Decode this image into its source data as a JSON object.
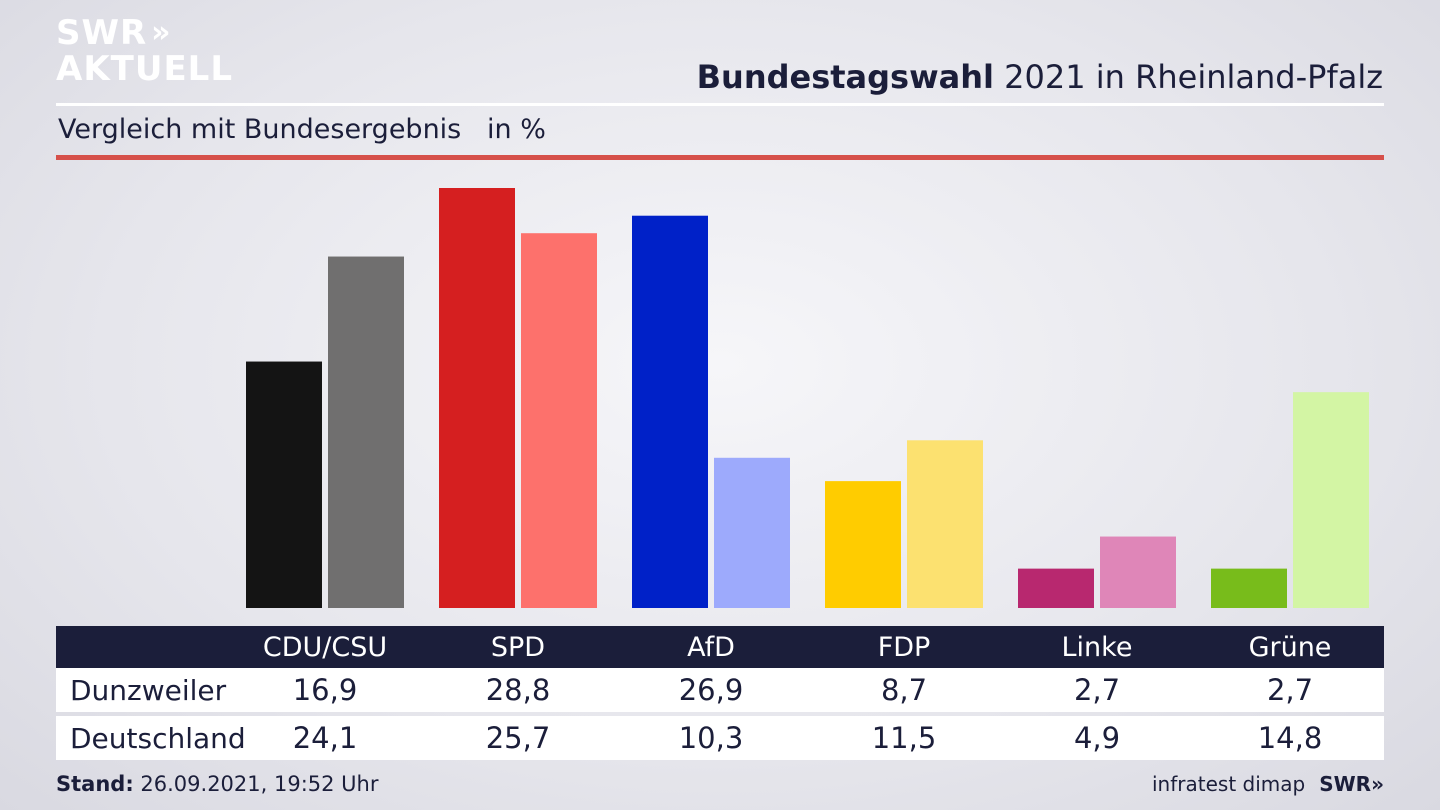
{
  "logo": {
    "line1": "SWR",
    "chevrons": "»",
    "line2": "AKTUELL"
  },
  "title": {
    "bold": "Bundestagswahl",
    "rest": " 2021 in Rheinland-Pfalz"
  },
  "subtitle": "Vergleich mit Bundesergebnis   in %",
  "table": {
    "headers": [
      "CDU/CSU",
      "SPD",
      "AfD",
      "FDP",
      "Linke",
      "Grüne"
    ],
    "rows": [
      {
        "label": "Dunzweiler",
        "values": [
          "16,9",
          "28,8",
          "26,9",
          "8,7",
          "2,7",
          "2,7"
        ]
      },
      {
        "label": "Deutschland",
        "values": [
          "24,1",
          "25,7",
          "10,3",
          "11,5",
          "4,9",
          "14,8"
        ]
      }
    ]
  },
  "footer": {
    "stand_label": "Stand:",
    "stand_value": " 26.09.2021, 19:52 Uhr",
    "source": "infratest dimap",
    "brand": "SWR»"
  },
  "chart_data": {
    "type": "bar",
    "categories": [
      "CDU/CSU",
      "SPD",
      "AfD",
      "FDP",
      "Linke",
      "Grüne"
    ],
    "series": [
      {
        "name": "Dunzweiler",
        "values": [
          16.9,
          28.8,
          26.9,
          8.7,
          2.7,
          2.7
        ],
        "colors": [
          "#141414",
          "#d51f20",
          "#0021c8",
          "#ffcc00",
          "#b8286f",
          "#78bc1b"
        ]
      },
      {
        "name": "Deutschland",
        "values": [
          24.1,
          25.7,
          10.3,
          11.5,
          4.9,
          14.8
        ],
        "colors": [
          "#706f6f",
          "#fd716c",
          "#9daafc",
          "#fce170",
          "#df86b8",
          "#d3f5a4"
        ]
      }
    ],
    "ylim": [
      0,
      28.8
    ],
    "grid": false,
    "legend": "none",
    "title": "Bundestagswahl 2021 in Rheinland-Pfalz",
    "xlabel": "",
    "ylabel": ""
  }
}
